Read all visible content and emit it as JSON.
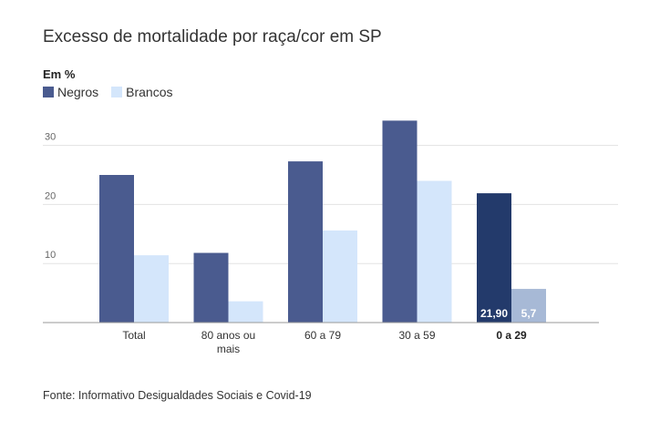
{
  "title": "Excesso de mortalidade por raça/cor em SP",
  "unit_label": "Em %",
  "legend": [
    {
      "name": "Negros",
      "color": "#4a5b8f"
    },
    {
      "name": "Brancos",
      "color": "#d4e6fb"
    }
  ],
  "source": "Fonte: Informativo Desigualdades Sociais e Covid-19",
  "chart_data": {
    "type": "bar",
    "title": "Excesso de mortalidade por raça/cor em SP",
    "ylabel": "Em %",
    "xlabel": "",
    "ylim": [
      0,
      35
    ],
    "yticks": [
      10,
      20,
      30
    ],
    "grid": true,
    "legend_position": "top-left",
    "categories": [
      "Total",
      "80 anos ou mais",
      "60 a 79",
      "30 a 59",
      "0 a 29"
    ],
    "category_label_lines": [
      [
        "Total"
      ],
      [
        "80 anos ou",
        "mais"
      ],
      [
        "60 a 79"
      ],
      [
        "30 a 59"
      ],
      [
        "0 a 29"
      ]
    ],
    "highlight_category": "0 a 29",
    "highlight_colors": {
      "Negros": "#233a6b",
      "Brancos": "#a7b9d6"
    },
    "series": [
      {
        "name": "Negros",
        "color": "#4a5b8f",
        "values": [
          25,
          11.8,
          27.3,
          34.2,
          21.9
        ]
      },
      {
        "name": "Brancos",
        "color": "#d4e6fb",
        "values": [
          11.4,
          3.6,
          15.6,
          24,
          5.7
        ]
      }
    ],
    "data_labels": [
      {
        "category": "0 a 29",
        "series": "Negros",
        "text": "21,90"
      },
      {
        "category": "0 a 29",
        "series": "Brancos",
        "text": "5,7"
      }
    ]
  }
}
